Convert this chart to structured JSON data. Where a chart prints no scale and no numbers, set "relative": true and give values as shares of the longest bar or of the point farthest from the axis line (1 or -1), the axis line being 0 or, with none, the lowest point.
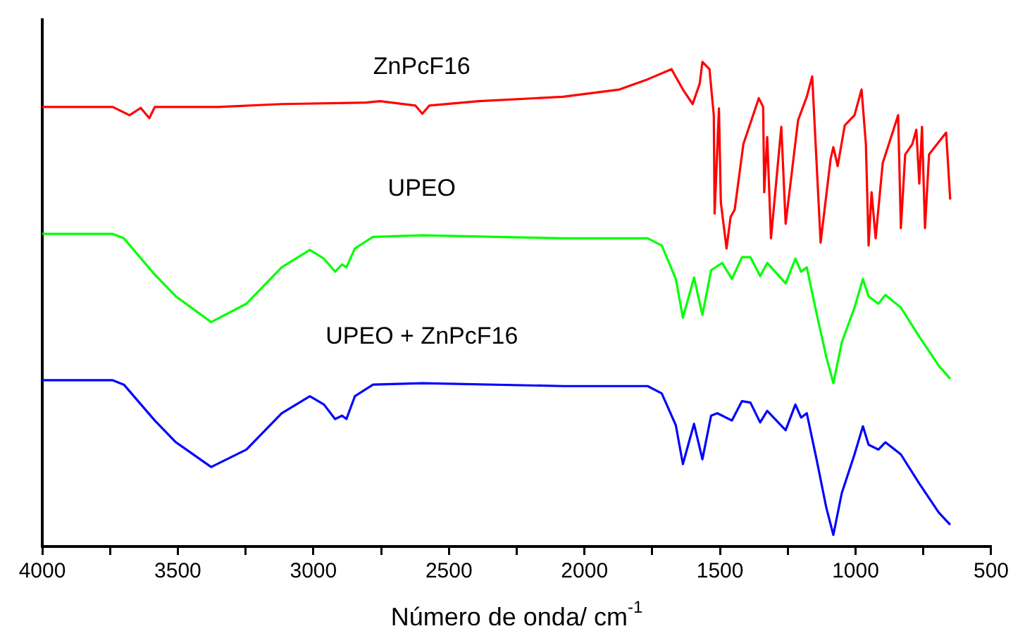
{
  "chart_data": {
    "type": "line",
    "relative": true,
    "xlabel": "Número de onda/ cm$^{-1}$",
    "xlim": [
      4000,
      500
    ],
    "xticks": [
      4000,
      {
        "value": 3750,
        "label": null
      },
      3500,
      {
        "value": 3250,
        "label": null
      },
      3000,
      {
        "value": 2750,
        "label": null
      },
      2500,
      {
        "value": 2250,
        "label": null
      },
      2000,
      {
        "value": 1750,
        "label": null
      },
      1500,
      {
        "value": 1250,
        "label": null
      },
      1000,
      {
        "value": 750,
        "label": null
      },
      500
    ],
    "grid": false,
    "legend": false,
    "marker": "none",
    "line_style": "solid",
    "series": [
      {
        "name": "ZnPcF16",
        "color": "#ff0000",
        "x": [
          4000,
          3740,
          3678,
          3637,
          3605,
          3585,
          3350,
          3117,
          2806,
          2754,
          2624,
          2598,
          2572,
          2390,
          2079,
          1871,
          1767,
          1679,
          1637,
          1601,
          1575,
          1565,
          1539,
          1523,
          1520,
          1504,
          1497,
          1476,
          1461,
          1446,
          1414,
          1357,
          1341,
          1337,
          1326,
          1312,
          1274,
          1258,
          1212,
          1180,
          1160,
          1129,
          1092,
          1082,
          1066,
          1040,
          1004,
          978,
          962,
          952,
          941,
          926,
          900,
          843,
          833,
          817,
          791,
          776,
          765,
          755,
          744,
          729,
          666,
          651
        ],
        "values": [
          0.907,
          0.907,
          0.89,
          0.905,
          0.884,
          0.907,
          0.907,
          0.913,
          0.916,
          0.919,
          0.91,
          0.893,
          0.91,
          0.919,
          0.928,
          0.943,
          0.964,
          0.985,
          0.943,
          0.913,
          0.955,
          1.0,
          0.985,
          0.89,
          0.687,
          0.904,
          0.71,
          0.615,
          0.68,
          0.695,
          0.83,
          0.925,
          0.907,
          0.731,
          0.845,
          0.636,
          0.866,
          0.666,
          0.88,
          0.928,
          0.97,
          0.627,
          0.8,
          0.824,
          0.785,
          0.869,
          0.89,
          0.943,
          0.83,
          0.621,
          0.731,
          0.636,
          0.791,
          0.89,
          0.657,
          0.809,
          0.83,
          0.86,
          0.749,
          0.866,
          0.657,
          0.809,
          0.854,
          0.716
        ]
      },
      {
        "name": "UPEO",
        "color": "#00ff00",
        "x": [
          4000,
          3740,
          3699,
          3585,
          3507,
          3377,
          3247,
          3117,
          3013,
          2961,
          2920,
          2894,
          2878,
          2847,
          2780,
          2598,
          2079,
          1767,
          1715,
          1663,
          1637,
          1596,
          1565,
          1533,
          1492,
          1456,
          1419,
          1388,
          1352,
          1326,
          1258,
          1222,
          1201,
          1180,
          1144,
          1108,
          1082,
          1051,
          1004,
          973,
          952,
          916,
          890,
          833,
          765,
          693,
          651
        ],
        "values": [
          0.645,
          0.645,
          0.636,
          0.561,
          0.516,
          0.463,
          0.501,
          0.576,
          0.612,
          0.594,
          0.567,
          0.582,
          0.576,
          0.615,
          0.639,
          0.642,
          0.636,
          0.636,
          0.621,
          0.552,
          0.472,
          0.555,
          0.478,
          0.57,
          0.585,
          0.552,
          0.597,
          0.597,
          0.558,
          0.585,
          0.543,
          0.594,
          0.567,
          0.576,
          0.481,
          0.391,
          0.337,
          0.421,
          0.493,
          0.552,
          0.516,
          0.501,
          0.519,
          0.493,
          0.433,
          0.373,
          0.346
        ]
      },
      {
        "name": "UPEO + ZnPcF16",
        "color": "#0000ff",
        "x": [
          4000,
          3740,
          3699,
          3585,
          3507,
          3377,
          3247,
          3117,
          3013,
          2961,
          2920,
          2894,
          2878,
          2847,
          2780,
          2598,
          2079,
          1767,
          1715,
          1663,
          1637,
          1596,
          1565,
          1533,
          1510,
          1492,
          1456,
          1419,
          1388,
          1352,
          1326,
          1258,
          1222,
          1201,
          1180,
          1144,
          1108,
          1082,
          1051,
          1004,
          973,
          952,
          916,
          890,
          833,
          765,
          693,
          651
        ],
        "values": [
          0.343,
          0.343,
          0.334,
          0.26,
          0.215,
          0.164,
          0.2,
          0.275,
          0.31,
          0.293,
          0.263,
          0.27,
          0.263,
          0.31,
          0.334,
          0.337,
          0.331,
          0.331,
          0.316,
          0.25,
          0.17,
          0.253,
          0.18,
          0.27,
          0.275,
          0.27,
          0.26,
          0.3,
          0.297,
          0.256,
          0.28,
          0.24,
          0.293,
          0.266,
          0.275,
          0.18,
          0.08,
          0.024,
          0.11,
          0.19,
          0.248,
          0.21,
          0.2,
          0.215,
          0.19,
          0.13,
          0.07,
          0.045
        ]
      }
    ]
  }
}
